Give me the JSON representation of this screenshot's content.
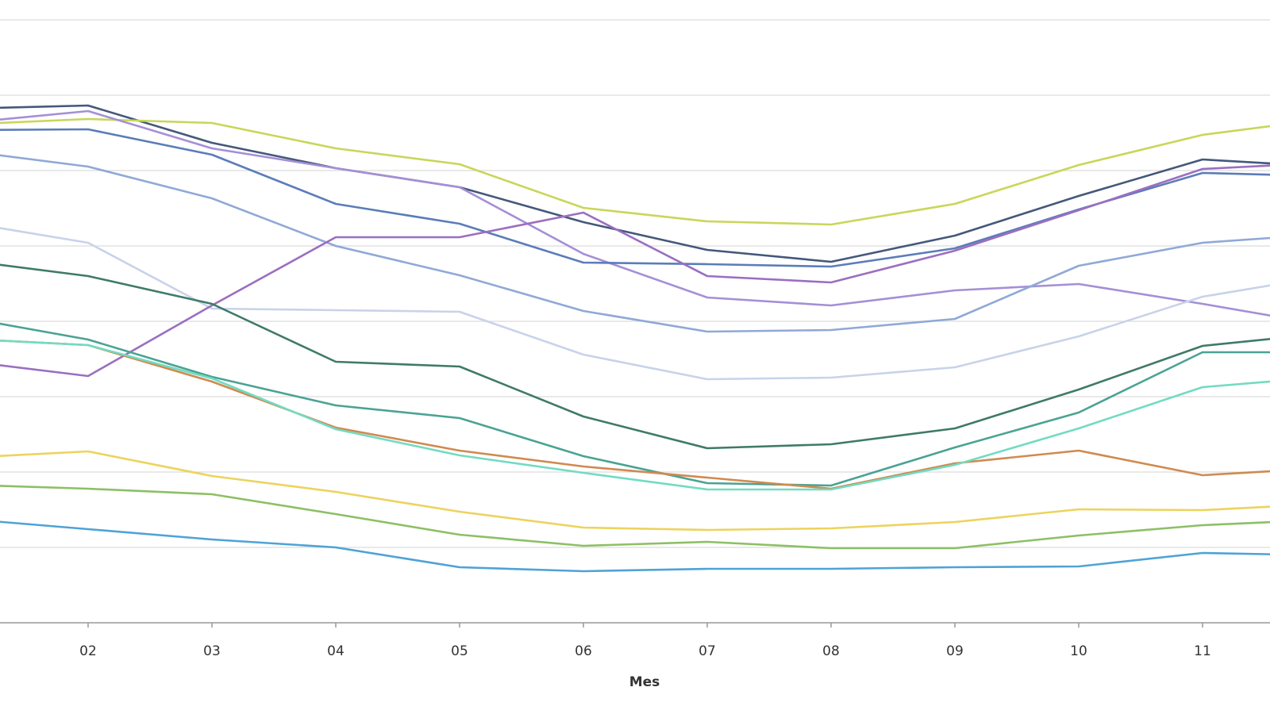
{
  "chart_data": {
    "type": "line",
    "xlabel": "Mes",
    "categories": [
      null,
      "02",
      "03",
      "04",
      "05",
      "06",
      "07",
      "08",
      "09",
      "10",
      "11",
      null
    ],
    "ylim": [
      0,
      785
    ],
    "ygrid": [
      95,
      190,
      285,
      380,
      475,
      570,
      665,
      760
    ],
    "grid": true,
    "series": [
      {
        "color": "#44587a",
        "values": [
          648,
          652,
          605,
          573,
          549,
          505,
          470,
          455,
          488,
          538,
          584,
          575
        ]
      },
      {
        "color": "#c9d65a",
        "values": [
          628,
          635,
          630,
          598,
          578,
          523,
          506,
          502,
          528,
          577,
          615,
          635
        ]
      },
      {
        "color": "#a58fd6",
        "values": [
          630,
          645,
          598,
          573,
          549,
          465,
          410,
          400,
          419,
          427,
          402,
          375
        ]
      },
      {
        "color": "#5b7db8",
        "values": [
          621,
          622,
          590,
          528,
          503,
          454,
          452,
          449,
          472,
          521,
          567,
          563
        ]
      },
      {
        "color": "#8fa9d6",
        "values": [
          595,
          575,
          535,
          475,
          438,
          393,
          367,
          369,
          383,
          450,
          479,
          490
        ]
      },
      {
        "color": "#c8d3ea",
        "values": [
          505,
          479,
          396,
          394,
          392,
          338,
          307,
          309,
          322,
          361,
          411,
          437
        ]
      },
      {
        "color": "#9b6fc0",
        "values": [
          330,
          311,
          400,
          486,
          486,
          517,
          437,
          429,
          469,
          520,
          572,
          580
        ]
      },
      {
        "color": "#3f7a6a",
        "values": [
          457,
          437,
          402,
          329,
          323,
          260,
          220,
          225,
          245,
          294,
          349,
          365
        ]
      },
      {
        "color": "#4aa394",
        "values": [
          385,
          357,
          310,
          274,
          258,
          210,
          176,
          173,
          221,
          265,
          341,
          341
        ]
      },
      {
        "color": "#d08a4f",
        "values": [
          358,
          350,
          304,
          246,
          217,
          197,
          183,
          169,
          201,
          217,
          186,
          195
        ]
      },
      {
        "color": "#72dbc2",
        "values": [
          358,
          350,
          308,
          244,
          211,
          189,
          168,
          168,
          199,
          245,
          297,
          310
        ]
      },
      {
        "color": "#ecd35e",
        "values": [
          208,
          216,
          185,
          165,
          140,
          120,
          117,
          119,
          127,
          143,
          142,
          150
        ]
      },
      {
        "color": "#8cc064",
        "values": [
          174,
          169,
          162,
          137,
          111,
          97,
          102,
          94,
          94,
          110,
          123,
          130
        ]
      },
      {
        "color": "#4ea3d6",
        "values": [
          131,
          118,
          105,
          95,
          70,
          65,
          68,
          68,
          70,
          71,
          88,
          85
        ]
      }
    ]
  }
}
